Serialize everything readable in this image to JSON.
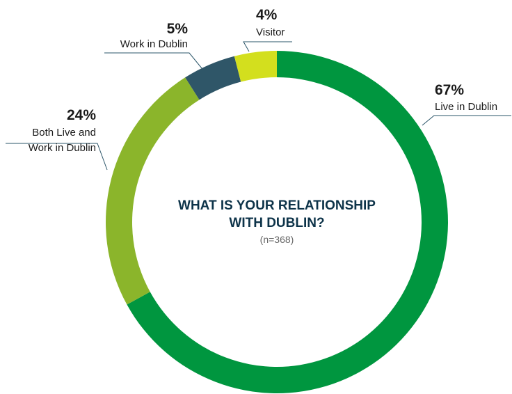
{
  "chart_data": {
    "type": "donut",
    "title": "WHAT IS YOUR RELATIONSHIP\nWITH DUBLIN?",
    "subtitle": "(n=368)",
    "categories": [
      "Live in Dublin",
      "Both Live and\nWork in Dublin",
      "Work in Dublin",
      "Visitor"
    ],
    "values": [
      67,
      24,
      5,
      4
    ],
    "value_labels": [
      "67%",
      "24%",
      "5%",
      "4%"
    ],
    "colors": [
      "#00963f",
      "#8bb52b",
      "#2f5668",
      "#d3df1e"
    ]
  }
}
